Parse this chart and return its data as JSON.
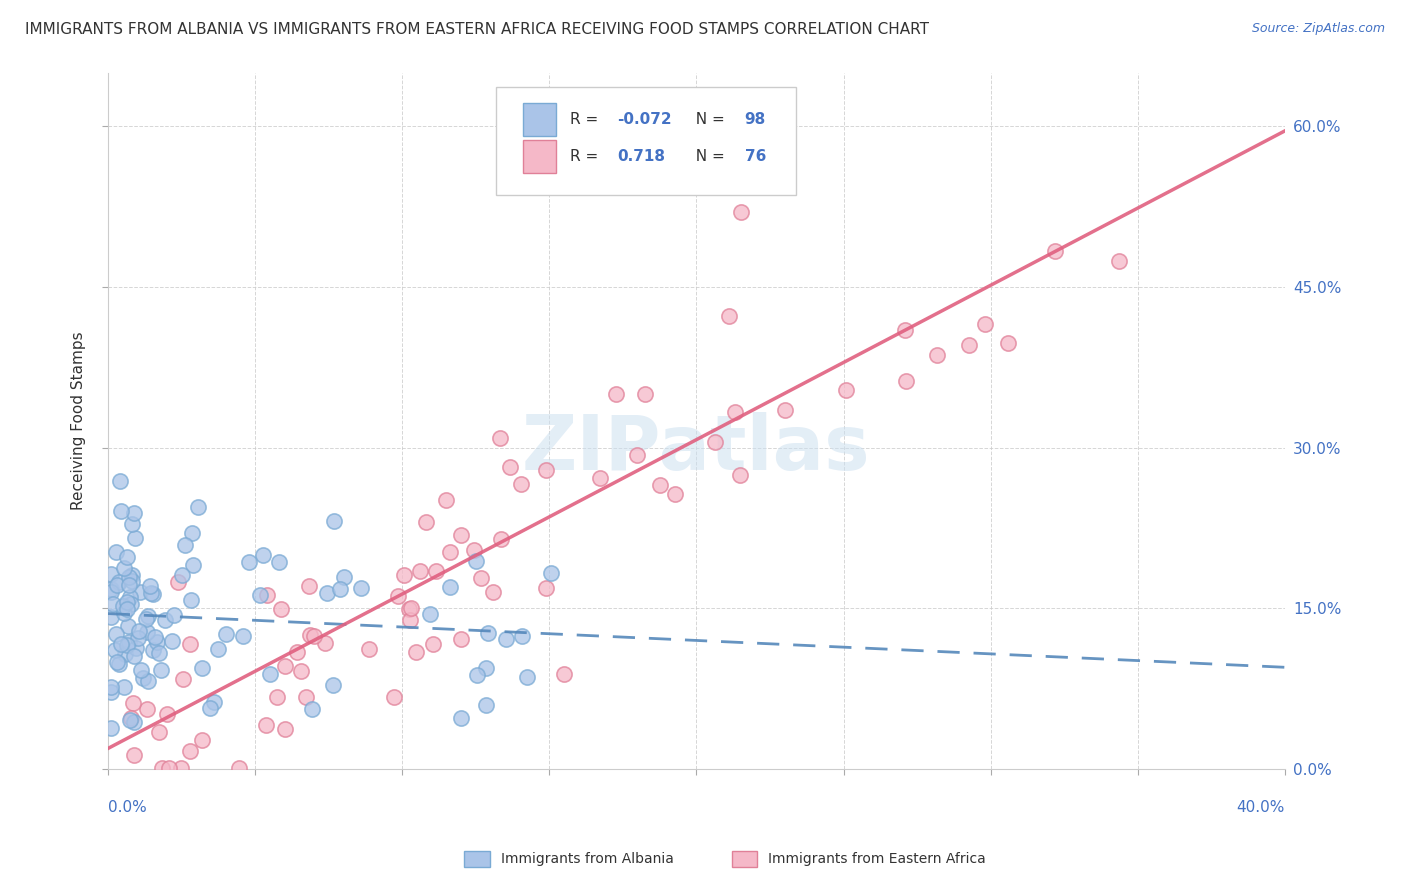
{
  "title": "IMMIGRANTS FROM ALBANIA VS IMMIGRANTS FROM EASTERN AFRICA RECEIVING FOOD STAMPS CORRELATION CHART",
  "source": "Source: ZipAtlas.com",
  "ylabel": "Receiving Food Stamps",
  "albania_color": "#aac4e8",
  "albania_edge_color": "#7aaad4",
  "albania_line_color": "#5588bb",
  "eastern_africa_color": "#f5b8c8",
  "eastern_africa_edge_color": "#e08098",
  "eastern_africa_line_color": "#e06080",
  "albania_R": -0.072,
  "albania_N": 98,
  "eastern_africa_R": 0.718,
  "eastern_africa_N": 76,
  "legend_label_1": "Immigrants from Albania",
  "legend_label_2": "Immigrants from Eastern Africa",
  "watermark": "ZIPatlas",
  "background_color": "#ffffff",
  "grid_color": "#cccccc",
  "tick_label_color": "#4472c4",
  "text_color": "#333333",
  "xlim": [
    0.0,
    0.4
  ],
  "ylim": [
    0.0,
    0.65
  ],
  "ytick_vals": [
    0.0,
    0.15,
    0.3,
    0.45,
    0.6
  ],
  "ytick_labels": [
    "0.0%",
    "15.0%",
    "30.0%",
    "45.0%",
    "60.0%"
  ],
  "xtick_left_label": "0.0%",
  "xtick_right_label": "40.0%",
  "title_fontsize": 11,
  "tick_fontsize": 11,
  "source_fontsize": 9,
  "legend_fontsize": 11
}
